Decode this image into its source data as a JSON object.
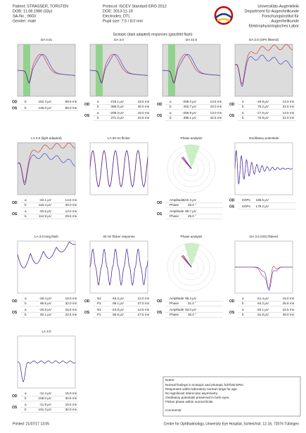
{
  "header": {
    "patient": [
      "Patient: STRASSER, TORSTEN",
      "DOB: 11.08.1980 (33y)",
      "SA-No.: 9603",
      "Gender: male"
    ],
    "exam": [
      "Protocol: ISCEV Standard ERG 2012",
      "DOE: 2013-11-19",
      "Electrodes: DTL",
      "Pupil size: 7.5 / 8.0 mm"
    ],
    "institution": [
      "Universitäts-Augenklinik",
      "Department für Augenheilkunde",
      "Forschungsinstitut für",
      "Augenheilkunde",
      "Elektrophysiologisches Labor"
    ]
  },
  "banner": "Scotopic (dark adapted) responses (ganzfeld flash)",
  "panels": [
    {
      "title": "DA 0.01",
      "kind": "erg",
      "tables": [
        {
          "eye": "OD",
          "rows": [
            [
              "b",
              "152.4 µV",
              "88.5 ms"
            ]
          ]
        },
        {
          "eye": "OS",
          "rows": [
            [
              "b",
              "148.0 µV",
              "86.0 ms"
            ]
          ]
        }
      ]
    },
    {
      "title": "DA 3.0",
      "kind": "erg",
      "tables": [
        {
          "eye": "OD",
          "rows": [
            [
              "a",
              "-215.1 µV",
              "15.5 ms"
            ],
            [
              "b",
              "386.0 µV",
              "45.0 ms"
            ]
          ]
        },
        {
          "eye": "OS",
          "rows": [
            [
              "a",
              "-208.3 µV",
              "15.0 ms"
            ],
            [
              "b",
              "371.2 µV",
              "44.5 ms"
            ]
          ]
        }
      ]
    },
    {
      "title": "DA 10.0",
      "kind": "erg",
      "tables": [
        {
          "eye": "OD",
          "rows": [
            [
              "a",
              "-268.4 µV",
              "13.5 ms"
            ],
            [
              "b",
              "402.7 µV",
              "43.0 ms"
            ]
          ]
        },
        {
          "eye": "OS",
          "rows": [
            [
              "a",
              "-259.9 µV",
              "13.0 ms"
            ],
            [
              "b",
              "395.1 µV",
              "42.5 ms"
            ]
          ]
        }
      ]
    },
    {
      "title": "DA 3.0 (OPs filtered)",
      "kind": "rise",
      "tables": [
        {
          "eye": "OD",
          "rows": [
            [
              "a",
              "-18.9 µV",
              "14.0 ms"
            ],
            [
              "b",
              "76.2 µV",
              "31.5 ms"
            ]
          ]
        },
        {
          "eye": "OS",
          "rows": [
            [
              "a",
              "-17.5 µV",
              "14.5 ms"
            ],
            [
              "b",
              "72.8 µV",
              "31.0 ms"
            ]
          ]
        }
      ]
    },
    {
      "title": "LA 3.0 (light adapted)",
      "kind": "rise",
      "tables": [
        {
          "eye": "OD",
          "rows": [
            [
              "a",
              "-32.1 µV",
              "14.5 ms"
            ],
            [
              "b",
              "118.4 µV",
              "30.0 ms"
            ]
          ]
        },
        {
          "eye": "OS",
          "rows": [
            [
              "a",
              "-30.6 µV",
              "14.0 ms"
            ],
            [
              "b",
              "112.9 µV",
              "29.5 ms"
            ]
          ]
        }
      ]
    },
    {
      "title": "LA 30 Hz flicker",
      "kind": "flicker",
      "tables": []
    },
    {
      "title": "Phase analysis",
      "kind": "polar",
      "tables": [
        {
          "eye": "OD",
          "rows": [
            [
              "Amplitude",
              "102.3 µV"
            ],
            [
              "Phase",
              "26.0 °"
            ]
          ]
        },
        {
          "eye": "OS",
          "rows": [
            [
              "Amplitude",
              "98.7 µV"
            ],
            [
              "Phase",
              "25.0 °"
            ]
          ]
        }
      ]
    },
    {
      "title": "Oscillatory potentials",
      "kind": "osc",
      "tables": [
        {
          "eye": "OD",
          "rows": [
            [
              "ΣOPs",
              "185.6 µV"
            ]
          ]
        },
        {
          "eye": "OS",
          "rows": [
            [
              "ΣOPs",
              "179.2 µV"
            ]
          ]
        }
      ]
    },
    {
      "title": "LA 3.0 long flash",
      "kind": "spiky",
      "tables": [
        {
          "eye": "OD",
          "rows": [
            [
              "a",
              "-28.4 µV",
              "16.0 ms"
            ],
            [
              "b",
              "96.5 µV",
              "32.0 ms"
            ]
          ]
        },
        {
          "eye": "OS",
          "rows": [
            [
              "a",
              "-26.9 µV",
              "16.5 ms"
            ],
            [
              "b",
              "92.1 µV",
              "32.5 ms"
            ]
          ]
        }
      ]
    },
    {
      "title": "30 Hz flicker response",
      "kind": "pulse",
      "tables": [
        {
          "eye": "OD",
          "rows": [
            [
              "N1",
              "-45.2 µV",
              "12.0 ms"
            ],
            [
              "P1",
              "98.1 µV",
              "27.0 ms"
            ]
          ]
        },
        {
          "eye": "OS",
          "rows": [
            [
              "N1",
              "-43.8 µV",
              "12.5 ms"
            ],
            [
              "P1",
              "95.6 µV",
              "27.5 ms"
            ]
          ]
        }
      ]
    },
    {
      "title": "Phase analysis",
      "kind": "polar",
      "tables": [
        {
          "eye": "OD",
          "rows": [
            [
              "Amplitude",
              "96.4 µV"
            ],
            [
              "Phase",
              "31.0 °"
            ]
          ]
        },
        {
          "eye": "OS",
          "rows": [
            [
              "Amplitude",
              "93.0 µV"
            ],
            [
              "Phase",
              "30.0 °"
            ]
          ]
        }
      ]
    },
    {
      "title": "DA 3.0 (OD) filtered",
      "kind": "bump",
      "tables": [
        {
          "eye": "OD",
          "rows": [
            [
              "a",
              "-21.4 µV",
              "15.0 ms"
            ],
            [
              "b",
              "64.2 µV",
              "45.5 ms"
            ]
          ]
        },
        {
          "eye": "OS",
          "rows": [
            [
              "a",
              "-20.1 µV",
              "15.5 ms"
            ],
            [
              "b",
              "61.8 µV",
              "46.0 ms"
            ]
          ]
        }
      ]
    },
    {
      "title": "LA 3.0",
      "kind": "flat",
      "tables": [
        {
          "eye": "OD",
          "rows": [
            [
              "a",
              "-12.4 µV",
              "15.0 ms"
            ],
            [
              "b",
              "106.0 µV",
              "30.5 ms"
            ]
          ]
        },
        {
          "eye": "OS",
          "rows": [
            [
              "a",
              "-11.9 µV",
              "15.5 ms"
            ],
            [
              "b",
              "101.3 µV",
              "30.0 ms"
            ]
          ]
        }
      ]
    }
  ],
  "notes": {
    "title": "Notes:",
    "lines": [
      "Normal findings in scotopic and photopic full-field ERG.",
      "Responses within laboratory normal range for age.",
      "No significant interocular asymmetry.",
      "Oscillatory potentials preserved in both eyes.",
      "Flicker phase within normal limits."
    ],
    "comments": "Comments:"
  },
  "footer": {
    "printed": "Printed: 21/07/17 13:05",
    "address": "Centre for Ophthalmology, University Eye Hospital, Schleichstr. 12-16, 72076 Tübingen"
  }
}
